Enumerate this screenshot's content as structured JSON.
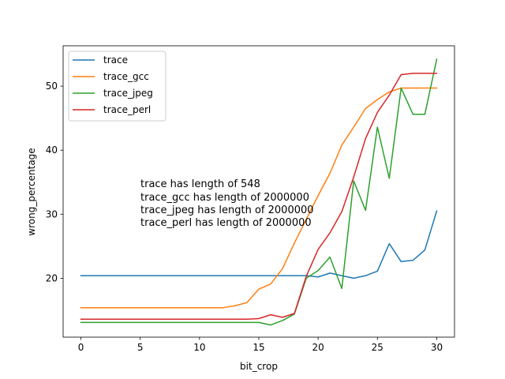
{
  "chart_data": {
    "type": "line",
    "xlabel": "bit_crop",
    "ylabel": "wrong_percentage",
    "xlim": [
      -1.5,
      31.5
    ],
    "ylim": [
      10.8,
      56.3
    ],
    "xticks": [
      0,
      5,
      10,
      15,
      20,
      25,
      30
    ],
    "yticks": [
      20,
      30,
      40,
      50
    ],
    "grid": false,
    "legend_position": "top-left",
    "x": [
      0,
      1,
      2,
      3,
      4,
      5,
      6,
      7,
      8,
      9,
      10,
      11,
      12,
      13,
      14,
      15,
      16,
      17,
      18,
      19,
      20,
      21,
      22,
      23,
      24,
      25,
      26,
      27,
      28,
      29,
      30
    ],
    "series": [
      {
        "name": "trace",
        "color": "#1f77b4",
        "values": [
          20.4,
          20.4,
          20.4,
          20.4,
          20.4,
          20.4,
          20.4,
          20.4,
          20.4,
          20.4,
          20.4,
          20.4,
          20.4,
          20.4,
          20.4,
          20.4,
          20.4,
          20.4,
          20.4,
          20.4,
          20.2,
          20.8,
          20.4,
          20.0,
          20.4,
          21.1,
          25.4,
          22.6,
          22.8,
          24.4,
          30.5
        ]
      },
      {
        "name": "trace_gcc",
        "color": "#ff7f0e",
        "values": [
          15.4,
          15.4,
          15.4,
          15.4,
          15.4,
          15.4,
          15.4,
          15.4,
          15.4,
          15.4,
          15.4,
          15.4,
          15.4,
          15.7,
          16.2,
          18.3,
          19.1,
          21.5,
          25.5,
          29.2,
          32.9,
          36.4,
          40.8,
          43.6,
          46.5,
          47.9,
          49.1,
          49.7,
          49.7,
          49.7,
          49.7
        ]
      },
      {
        "name": "trace_jpeg",
        "color": "#2ca02c",
        "values": [
          13.1,
          13.1,
          13.1,
          13.1,
          13.1,
          13.1,
          13.1,
          13.1,
          13.1,
          13.1,
          13.1,
          13.1,
          13.1,
          13.1,
          13.1,
          13.1,
          12.7,
          13.4,
          14.4,
          20.0,
          21.2,
          23.3,
          18.4,
          35.2,
          30.6,
          43.6,
          35.6,
          49.7,
          45.6,
          45.6,
          54.2
        ]
      },
      {
        "name": "trace_perl",
        "color": "#d62728",
        "values": [
          13.6,
          13.6,
          13.6,
          13.6,
          13.6,
          13.6,
          13.6,
          13.6,
          13.6,
          13.6,
          13.6,
          13.6,
          13.6,
          13.6,
          13.6,
          13.7,
          14.3,
          13.9,
          14.5,
          20.3,
          24.5,
          27.1,
          30.4,
          35.8,
          41.8,
          45.9,
          48.6,
          51.8,
          52.0,
          52.0,
          52.0
        ]
      }
    ],
    "annotations": [
      "trace has length of 548",
      "trace_gcc has length of 2000000",
      "trace_jpeg has length of 2000000",
      "trace_perl has length of 2000000"
    ]
  }
}
